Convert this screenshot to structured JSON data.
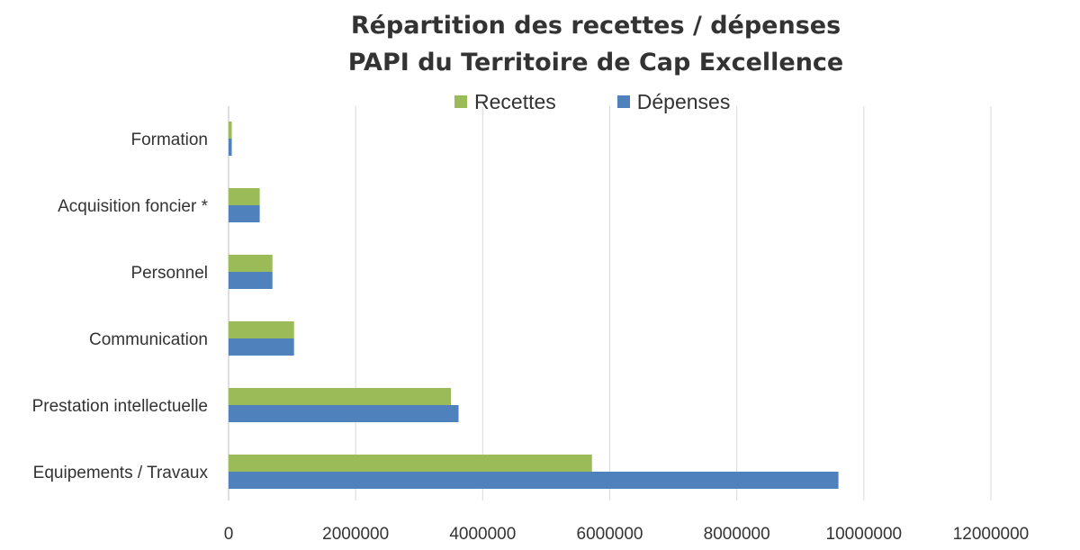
{
  "chart_data": {
    "type": "bar",
    "orientation": "horizontal",
    "title_line1": "Répartition des recettes / dépenses",
    "title_line2": "PAPI du Territoire de Cap Excellence",
    "categories": [
      "Formation",
      "Acquisition foncier *",
      "Personnel",
      "Communication",
      "Prestation intellectuelle",
      "Equipements / Travaux"
    ],
    "series": [
      {
        "name": "Recettes",
        "color": "#9BBB59",
        "values": [
          50000,
          490000,
          690000,
          1030000,
          3500000,
          5720000
        ]
      },
      {
        "name": "Dépenses",
        "color": "#4F81BD",
        "values": [
          50000,
          490000,
          690000,
          1030000,
          3620000,
          9600000
        ]
      }
    ],
    "xlim": [
      0,
      12000000
    ],
    "x_ticks": [
      0,
      2000000,
      4000000,
      6000000,
      8000000,
      10000000,
      12000000
    ],
    "x_tick_labels": [
      "0",
      "2000000",
      "4000000",
      "6000000",
      "8000000",
      "10000000",
      "12000000"
    ],
    "grid": true,
    "legend_position": "top"
  }
}
